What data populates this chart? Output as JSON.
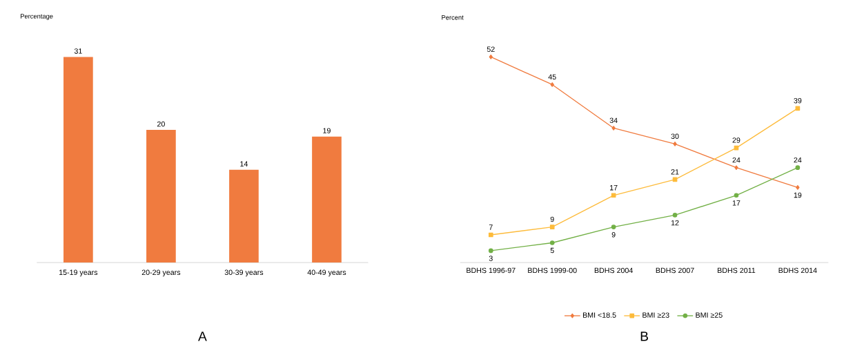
{
  "chart_data": [
    {
      "type": "bar",
      "ylabel": "Percentage",
      "categories": [
        "15-19 years",
        "20-29 years",
        "30-39 years",
        "40-49 years"
      ],
      "values": [
        31,
        20,
        14,
        19
      ],
      "color": "#f07b3f",
      "data_labels": true,
      "annotations": [
        "A"
      ]
    },
    {
      "type": "line",
      "ylabel": "Percent",
      "categories": [
        "BDHS 1996-97",
        "BDHS 1999-00",
        "BDHS 2004",
        "BDHS 2007",
        "BDHS 2011",
        "BDHS 2014"
      ],
      "series": [
        {
          "name": "BMI <18.5",
          "color": "#f07b3f",
          "marker": "diamond",
          "values": [
            52,
            45,
            34,
            30,
            24,
            19
          ]
        },
        {
          "name": "BMI ≥23",
          "color": "#fdbb3b",
          "marker": "square",
          "values": [
            7,
            9,
            17,
            21,
            29,
            39
          ]
        },
        {
          "name": "BMI ≥25",
          "color": "#72b046",
          "marker": "circle",
          "values": [
            3,
            5,
            9,
            12,
            17,
            24
          ]
        }
      ],
      "data_labels": true,
      "legend": "bottom",
      "line_style": "solid",
      "annotations": [
        "B"
      ]
    }
  ]
}
